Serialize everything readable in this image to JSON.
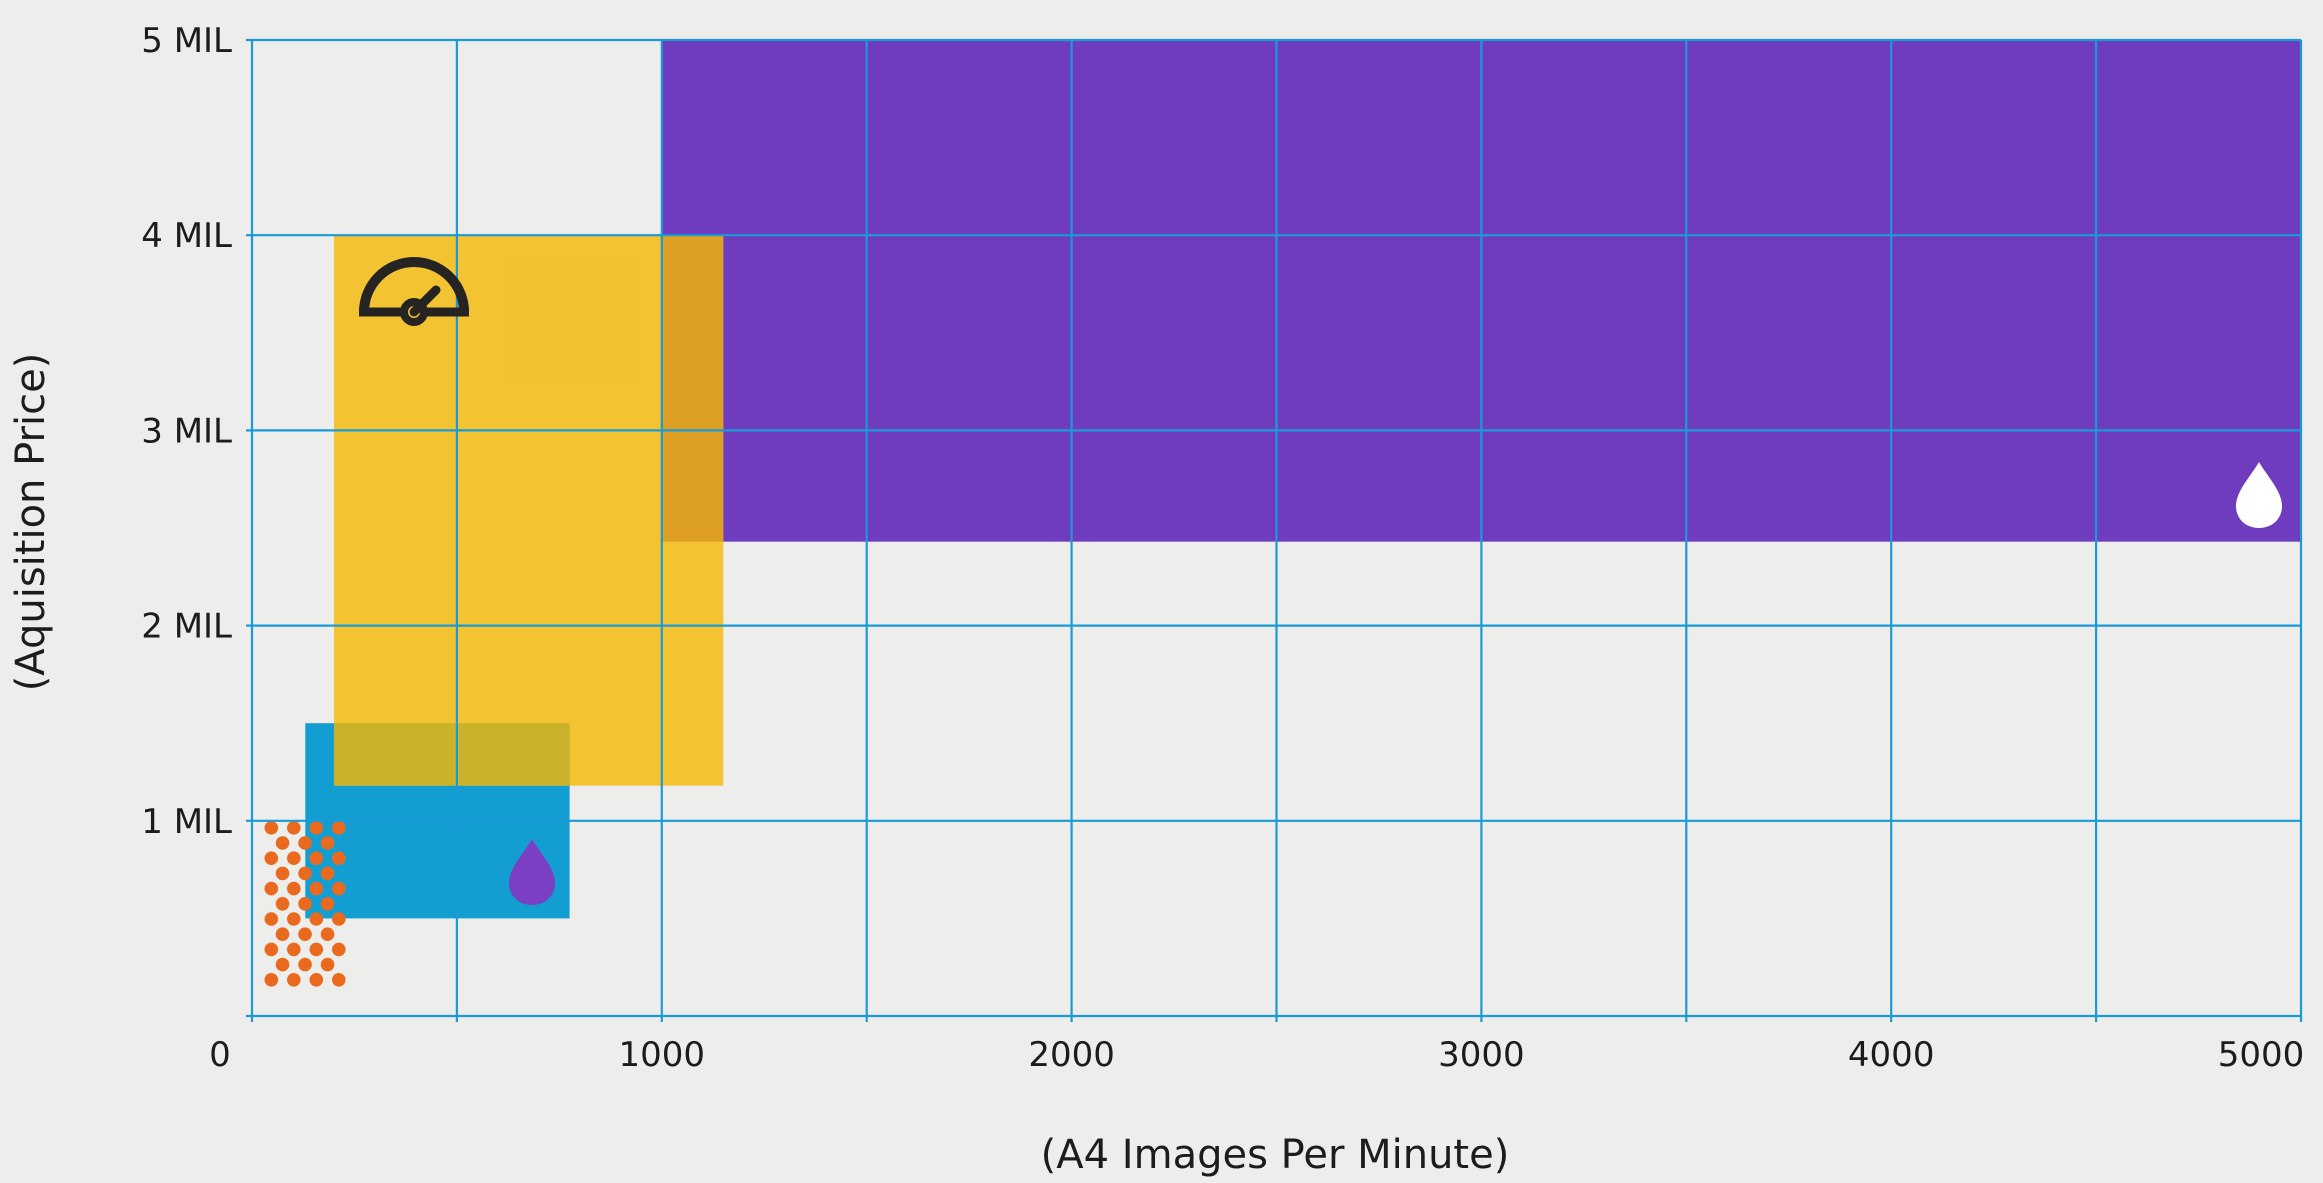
{
  "chart_data": {
    "type": "area",
    "title": "",
    "xlabel": "(A4 Images Per Minute)",
    "ylabel": "(Aquisition Price)",
    "xlim": [
      0,
      5000
    ],
    "ylim": [
      0,
      5
    ],
    "x_ticks": [
      {
        "value": 0,
        "label": "0"
      },
      {
        "value": 1000,
        "label": "1000"
      },
      {
        "value": 2000,
        "label": "2000"
      },
      {
        "value": 3000,
        "label": "3000"
      },
      {
        "value": 4000,
        "label": "4000"
      },
      {
        "value": 5000,
        "label": "5000"
      }
    ],
    "y_ticks": [
      {
        "value": 1,
        "label": "1 MIL"
      },
      {
        "value": 2,
        "label": "2 MIL"
      },
      {
        "value": 3,
        "label": "3 MIL"
      },
      {
        "value": 4,
        "label": "4 MIL"
      },
      {
        "value": 5,
        "label": "5 MIL"
      }
    ],
    "x_gridlines": [
      0,
      500,
      1000,
      1500,
      2000,
      2500,
      3000,
      3500,
      4000,
      4500,
      5000
    ],
    "y_gridlines": [
      0,
      1,
      2,
      3,
      4,
      5
    ],
    "grid": true,
    "grid_color": "#1a9ad6",
    "regions": [
      {
        "id": "purple",
        "color": "#6f3cbf",
        "opacity": 1,
        "x": [
          1000,
          5000
        ],
        "y": [
          2.43,
          5
        ],
        "icon": "white-ink-drop-icon"
      },
      {
        "id": "yellow",
        "color": "#f3c12b",
        "opacity": 0.97,
        "x": [
          200,
          1150
        ],
        "y": [
          1.18,
          4
        ],
        "icon": "speedometer-icon"
      },
      {
        "id": "blue",
        "color": "#0b9bd1",
        "opacity": 0.97,
        "x": [
          130,
          775
        ],
        "y": [
          0.5,
          1.5
        ],
        "icon": "purple-ink-drop-icon"
      },
      {
        "id": "orange-dots",
        "color": "#e96a1e",
        "opacity": 1,
        "x": [
          30,
          230
        ],
        "y": [
          0.15,
          1
        ],
        "pattern": "dots"
      }
    ],
    "overlaps": [
      {
        "between": [
          "yellow",
          "purple"
        ],
        "color": "#dda025"
      },
      {
        "between": [
          "yellow",
          "blue"
        ],
        "color": "#cbb22b"
      }
    ],
    "colors": {
      "background": "#edeeeb",
      "ink_white": "#ffffff",
      "ink_purple": "#7a3fc4",
      "speedometer": "#252422"
    }
  }
}
